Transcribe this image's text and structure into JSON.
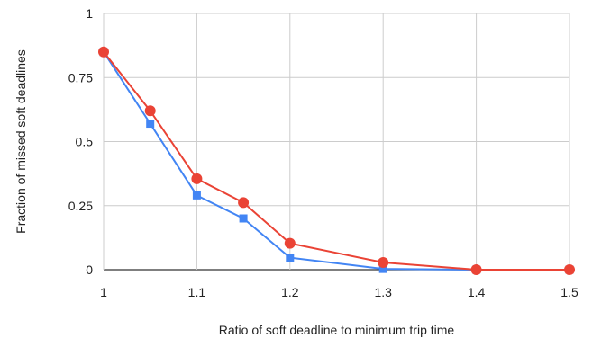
{
  "chart_data": {
    "type": "line",
    "title": "",
    "xlabel": "Ratio of soft deadline to minimum trip time",
    "ylabel": "Fraction of missed soft deadlines",
    "xlim": [
      1,
      1.5
    ],
    "ylim": [
      0,
      1
    ],
    "x_scale": "piecewise-linear",
    "x_ticks": [
      1,
      1.1,
      1.2,
      1.3,
      1.4,
      1.5
    ],
    "x_tick_labels": [
      "1",
      "1.1",
      "1.2",
      "1.3",
      "1.4",
      "1.5"
    ],
    "y_ticks": [
      0,
      0.25,
      0.5,
      0.75,
      1
    ],
    "y_tick_labels": [
      "0",
      "0.25",
      "0.5",
      "0.75",
      "1"
    ],
    "grid": true,
    "legend": "none",
    "series": [
      {
        "color": "#4285f4",
        "marker": "square",
        "x": [
          1,
          1.05,
          1.1,
          1.15,
          1.2,
          1.3,
          1.4,
          1.5
        ],
        "values": [
          0.85,
          0.57,
          0.29,
          0.2,
          0.047,
          0.003,
          0.0,
          0.0
        ]
      },
      {
        "color": "#ea4335",
        "marker": "circle",
        "x": [
          1,
          1.05,
          1.1,
          1.15,
          1.2,
          1.3,
          1.4,
          1.5
        ],
        "values": [
          0.85,
          0.62,
          0.355,
          0.262,
          0.103,
          0.028,
          0.0,
          0.0
        ]
      }
    ]
  }
}
